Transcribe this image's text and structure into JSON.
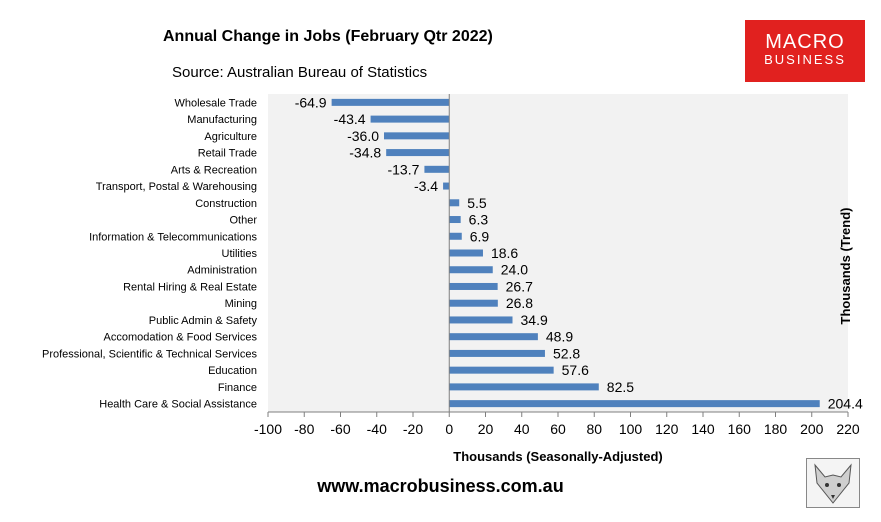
{
  "header": {
    "title": "Annual Change in Jobs (February Qtr 2022)",
    "source": "Source: Australian Bureau of Statistics"
  },
  "logo": {
    "line1": "MACRO",
    "line2": "BUSINESS",
    "brand_color": "#e1211f"
  },
  "footer": {
    "url": "www.macrobusiness.com.au"
  },
  "chart_data": {
    "type": "bar",
    "orientation": "horizontal",
    "title": "Annual Change in Jobs (February Qtr 2022)",
    "xlabel": "Thousands (Seasonally-Adjusted)",
    "ylabel": "Thousands (Trend)",
    "xlim": [
      -100,
      220
    ],
    "xticks": [
      -100,
      -80,
      -60,
      -40,
      -20,
      0,
      20,
      40,
      60,
      80,
      100,
      120,
      140,
      160,
      180,
      200,
      220
    ],
    "bar_color": "#4f81bd",
    "plot_background": "#f2f2f2",
    "grid": false,
    "categories": [
      "Wholesale Trade",
      "Manufacturing",
      "Agriculture",
      "Retail Trade",
      "Arts & Recreation",
      "Transport, Postal & Warehousing",
      "Construction",
      "Other",
      "Information & Telecommunications",
      "Utilities",
      "Administration",
      "Rental Hiring & Real Estate",
      "Mining",
      "Public Admin & Safety",
      "Accomodation & Food Services",
      "Professional, Scientific & Technical Services",
      "Education",
      "Finance",
      "Health Care & Social Assistance"
    ],
    "values": [
      -64.9,
      -43.4,
      -36.0,
      -34.8,
      -13.7,
      -3.4,
      5.5,
      6.3,
      6.9,
      18.6,
      24.0,
      26.7,
      26.8,
      34.9,
      48.9,
      52.8,
      57.6,
      82.5,
      204.4
    ],
    "data_labels": [
      "-64.9",
      "-43.4",
      "-36.0",
      "-34.8",
      "-13.7",
      "-3.4",
      "5.5",
      "6.3",
      "6.9",
      "18.6",
      "24.0",
      "26.7",
      "26.8",
      "34.9",
      "48.9",
      "52.8",
      "57.6",
      "82.5",
      "204.4"
    ]
  }
}
